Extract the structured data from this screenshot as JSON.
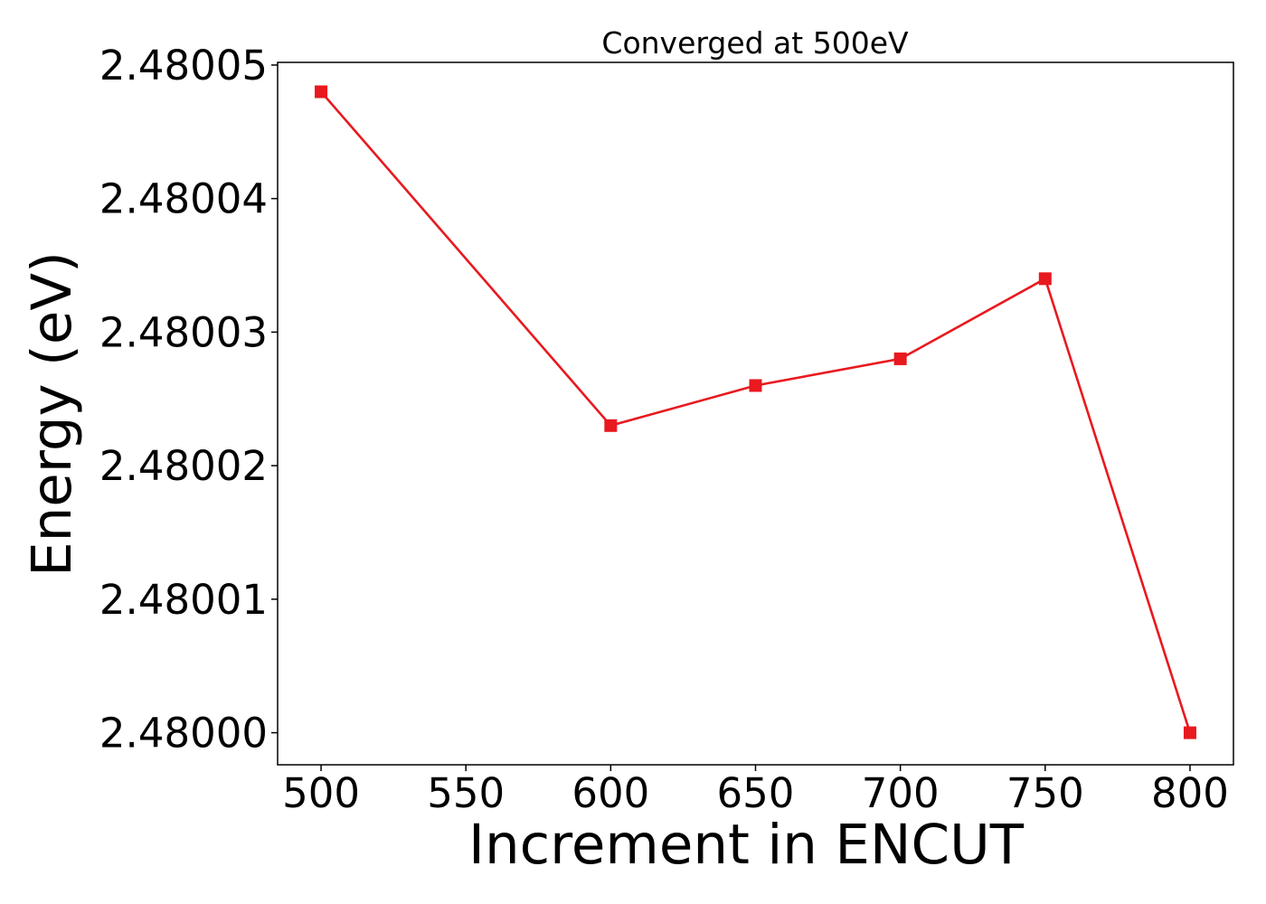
{
  "chart_data": {
    "type": "line",
    "title": "Converged at 500eV",
    "xlabel": "Increment in ENCUT",
    "ylabel": "Energy (eV)",
    "x": [
      500,
      600,
      650,
      700,
      750,
      800
    ],
    "series": [
      {
        "values": [
          2.480048,
          2.480023,
          2.480026,
          2.480028,
          2.480034,
          2.48
        ],
        "color": "#e8191f",
        "marker": "square"
      }
    ],
    "xticks": [
      500,
      550,
      600,
      650,
      700,
      750,
      800
    ],
    "xtick_labels": [
      "500",
      "550",
      "600",
      "650",
      "700",
      "750",
      "800"
    ],
    "yticks": [
      2.48,
      2.48001,
      2.48002,
      2.48003,
      2.48004,
      2.48005
    ],
    "ytick_labels": [
      "2.48000",
      "2.48001",
      "2.48002",
      "2.48003",
      "2.48004",
      "2.48005"
    ],
    "xlim": [
      485,
      815
    ],
    "ylim": [
      2.4799976,
      2.4800502
    ],
    "grid": false,
    "legend": "none"
  }
}
